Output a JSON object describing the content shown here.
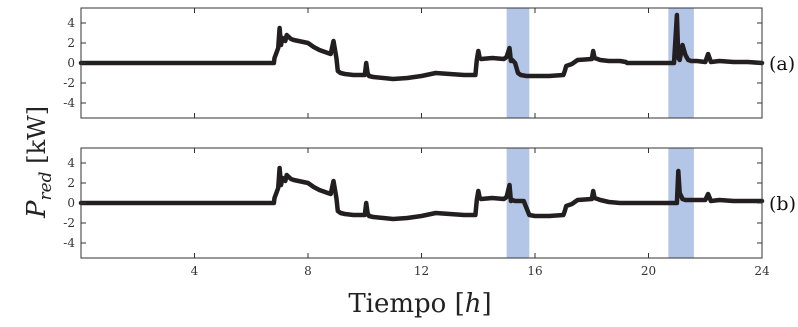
{
  "chart_data": {
    "type": "line",
    "xlabel": {
      "text": "Tiempo [",
      "var": "h",
      "close": "]"
    },
    "ylabel": {
      "main": "P",
      "sub": "red",
      "unit": " [kW]"
    },
    "xlim": [
      0,
      24
    ],
    "xticks": [
      4,
      8,
      12,
      16,
      20,
      24
    ],
    "colors": {
      "line": "#231f20",
      "band": "#b4c6e7"
    },
    "panels": [
      {
        "tag": "(a)",
        "ylim": [
          -5.5,
          5.5
        ],
        "yticks": [
          -4,
          -2,
          0,
          2,
          4
        ],
        "bands": [
          [
            15.0,
            15.8
          ],
          [
            20.7,
            21.6
          ]
        ],
        "series": [
          {
            "x": [
              0.0,
              2.2,
              2.25,
              6.8,
              6.82,
              6.95,
              7.0,
              7.05,
              7.1,
              7.2,
              7.25,
              7.4,
              7.5,
              8.0,
              8.2,
              8.4,
              8.6,
              8.8,
              8.9,
              9.0,
              9.05,
              9.15,
              9.3,
              9.6,
              10.0,
              10.05,
              10.1,
              10.15,
              10.3,
              11.0,
              11.5,
              12.0,
              12.5,
              13.0,
              13.5,
              13.9,
              13.95,
              14.0,
              14.05,
              14.1,
              14.5,
              14.9,
              15.0,
              15.1,
              15.15,
              15.2,
              15.3,
              15.4,
              15.5,
              15.7,
              16.0,
              16.5,
              17.0,
              17.05,
              17.1,
              17.3,
              17.5,
              18.0,
              18.05,
              18.1,
              18.3,
              18.6,
              19.0,
              19.2,
              19.25,
              20.9,
              21.0,
              21.05,
              21.1,
              21.2,
              21.3,
              21.4,
              21.5,
              21.7,
              22.0,
              22.1,
              22.2,
              22.5,
              23.0,
              23.5,
              24.0
            ],
            "y": [
              0.0,
              0.0,
              0.0,
              0.0,
              0.5,
              1.5,
              3.5,
              1.8,
              2.5,
              2.2,
              2.8,
              2.4,
              2.3,
              2.0,
              1.6,
              1.3,
              1.1,
              0.9,
              2.2,
              0.5,
              -0.8,
              -1.0,
              -1.1,
              -1.2,
              -1.2,
              0.0,
              -1.0,
              -1.3,
              -1.4,
              -1.6,
              -1.5,
              -1.3,
              -1.0,
              -1.1,
              -1.2,
              -1.2,
              0.3,
              1.2,
              0.5,
              0.4,
              0.5,
              0.4,
              0.6,
              1.5,
              0.2,
              0.3,
              0.0,
              -1.0,
              -1.2,
              -1.3,
              -1.3,
              -1.3,
              -1.2,
              -0.8,
              -0.3,
              -0.1,
              0.3,
              0.4,
              1.2,
              0.5,
              0.3,
              0.2,
              0.2,
              0.1,
              0.0,
              0.0,
              4.8,
              0.5,
              0.3,
              1.8,
              0.8,
              0.3,
              0.2,
              0.2,
              0.1,
              0.9,
              0.1,
              0.2,
              0.1,
              0.1,
              0.0
            ]
          }
        ]
      },
      {
        "tag": "(b)",
        "ylim": [
          -5.5,
          5.5
        ],
        "yticks": [
          -4,
          -2,
          0,
          2,
          4
        ],
        "bands": [
          [
            15.0,
            15.8
          ],
          [
            20.7,
            21.6
          ]
        ],
        "series": [
          {
            "x": [
              0.0,
              6.8,
              6.82,
              6.95,
              7.0,
              7.05,
              7.1,
              7.2,
              7.25,
              7.4,
              7.5,
              8.0,
              8.2,
              8.4,
              8.6,
              8.8,
              8.9,
              9.0,
              9.05,
              9.15,
              9.3,
              9.6,
              10.0,
              10.05,
              10.1,
              10.15,
              10.3,
              11.0,
              11.5,
              12.0,
              12.5,
              13.0,
              13.5,
              13.9,
              13.95,
              14.0,
              14.05,
              14.1,
              14.5,
              14.9,
              15.0,
              15.1,
              15.15,
              15.2,
              15.3,
              15.6,
              15.7,
              15.8,
              16.0,
              16.5,
              17.0,
              17.05,
              17.1,
              17.3,
              17.5,
              18.0,
              18.05,
              18.1,
              18.3,
              18.6,
              19.0,
              19.2,
              19.25,
              20.9,
              21.0,
              21.05,
              21.1,
              21.2,
              21.3,
              21.5,
              21.7,
              22.0,
              22.1,
              22.2,
              22.5,
              23.0,
              23.5,
              24.0
            ],
            "y": [
              0.0,
              0.0,
              0.5,
              1.5,
              3.5,
              1.8,
              2.5,
              2.2,
              2.8,
              2.4,
              2.3,
              2.0,
              1.6,
              1.3,
              1.1,
              0.9,
              2.2,
              0.5,
              -0.8,
              -1.0,
              -1.1,
              -1.2,
              -1.2,
              0.0,
              -1.0,
              -1.3,
              -1.4,
              -1.6,
              -1.5,
              -1.3,
              -1.0,
              -1.1,
              -1.2,
              -1.2,
              0.3,
              1.2,
              0.5,
              0.4,
              0.5,
              0.4,
              0.6,
              1.8,
              0.2,
              0.3,
              0.2,
              0.2,
              -0.5,
              -1.2,
              -1.3,
              -1.3,
              -1.2,
              -0.8,
              -0.3,
              -0.1,
              0.3,
              0.4,
              1.2,
              0.5,
              0.3,
              0.1,
              0.0,
              0.0,
              0.0,
              0.0,
              0.0,
              3.2,
              1.0,
              0.4,
              0.3,
              0.3,
              0.3,
              0.3,
              0.9,
              0.2,
              0.3,
              0.2,
              0.2,
              0.2
            ]
          }
        ]
      }
    ]
  }
}
